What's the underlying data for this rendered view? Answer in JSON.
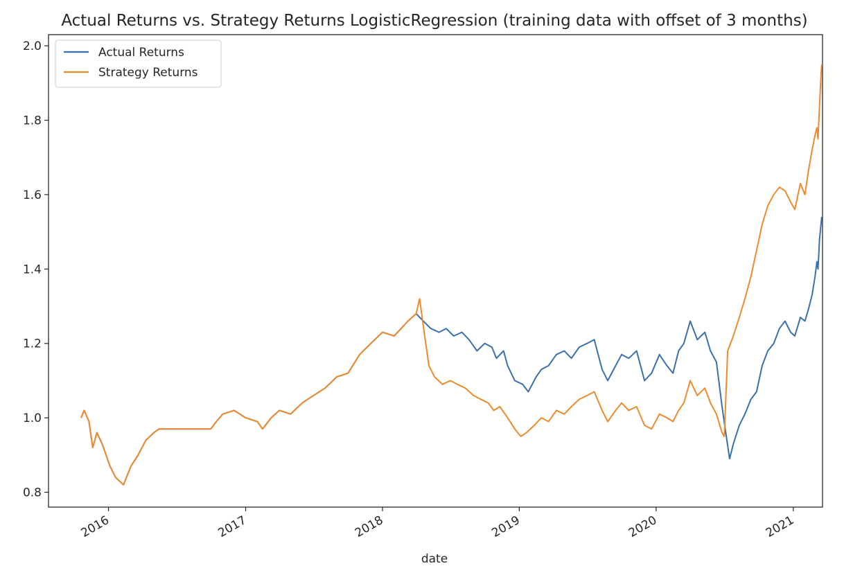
{
  "chart_data": {
    "type": "line",
    "title": "Actual Returns vs. Strategy Returns LogisticRegression (training data with offset of 3 months)",
    "xlabel": "date",
    "ylabel": "",
    "xlim": [
      "2015-07-25",
      "2021-03-20"
    ],
    "ylim": [
      0.76,
      2.03
    ],
    "x_ticks": [
      "2016",
      "2017",
      "2018",
      "2019",
      "2020",
      "2021"
    ],
    "y_ticks": [
      "0.8",
      "1.0",
      "1.2",
      "1.4",
      "1.6",
      "1.8",
      "2.0"
    ],
    "grid": false,
    "legend_position": "upper left",
    "colors": {
      "actual": "#3a6fad",
      "strategy": "#ef8a2c"
    },
    "series": [
      {
        "name": "Actual Returns",
        "color": "#3a6fad",
        "points": [
          [
            "2015-10-20",
            1.0
          ],
          [
            "2015-10-28",
            1.02
          ],
          [
            "2015-11-10",
            0.99
          ],
          [
            "2015-11-20",
            0.92
          ],
          [
            "2015-12-01",
            0.96
          ],
          [
            "2015-12-15",
            0.93
          ],
          [
            "2016-01-05",
            0.87
          ],
          [
            "2016-01-20",
            0.84
          ],
          [
            "2016-02-10",
            0.82
          ],
          [
            "2016-03-01",
            0.87
          ],
          [
            "2016-03-20",
            0.9
          ],
          [
            "2016-04-10",
            0.94
          ],
          [
            "2016-05-01",
            0.96
          ],
          [
            "2016-05-15",
            0.97
          ],
          [
            "2016-09-30",
            0.97
          ],
          [
            "2016-10-15",
            0.99
          ],
          [
            "2016-11-01",
            1.01
          ],
          [
            "2016-12-01",
            1.02
          ],
          [
            "2017-01-01",
            1.0
          ],
          [
            "2017-02-01",
            0.99
          ],
          [
            "2017-02-15",
            0.97
          ],
          [
            "2017-03-10",
            1.0
          ],
          [
            "2017-04-01",
            1.02
          ],
          [
            "2017-05-01",
            1.01
          ],
          [
            "2017-06-01",
            1.04
          ],
          [
            "2017-07-01",
            1.06
          ],
          [
            "2017-08-01",
            1.08
          ],
          [
            "2017-09-01",
            1.11
          ],
          [
            "2017-10-01",
            1.12
          ],
          [
            "2017-11-01",
            1.17
          ],
          [
            "2017-12-01",
            1.2
          ],
          [
            "2018-01-01",
            1.23
          ],
          [
            "2018-02-01",
            1.22
          ],
          [
            "2018-02-20",
            1.24
          ],
          [
            "2018-03-10",
            1.26
          ],
          [
            "2018-04-01",
            1.28
          ],
          [
            "2018-04-20",
            1.26
          ],
          [
            "2018-05-10",
            1.24
          ],
          [
            "2018-06-01",
            1.23
          ],
          [
            "2018-06-20",
            1.24
          ],
          [
            "2018-07-10",
            1.22
          ],
          [
            "2018-08-01",
            1.23
          ],
          [
            "2018-08-20",
            1.21
          ],
          [
            "2018-09-10",
            1.18
          ],
          [
            "2018-10-01",
            1.2
          ],
          [
            "2018-10-20",
            1.19
          ],
          [
            "2018-11-01",
            1.16
          ],
          [
            "2018-11-20",
            1.18
          ],
          [
            "2018-12-01",
            1.14
          ],
          [
            "2018-12-20",
            1.1
          ],
          [
            "2019-01-10",
            1.09
          ],
          [
            "2019-01-25",
            1.07
          ],
          [
            "2019-02-15",
            1.11
          ],
          [
            "2019-03-01",
            1.13
          ],
          [
            "2019-03-20",
            1.14
          ],
          [
            "2019-04-10",
            1.17
          ],
          [
            "2019-05-01",
            1.18
          ],
          [
            "2019-05-20",
            1.16
          ],
          [
            "2019-06-10",
            1.19
          ],
          [
            "2019-07-01",
            1.2
          ],
          [
            "2019-07-20",
            1.21
          ],
          [
            "2019-08-10",
            1.13
          ],
          [
            "2019-08-25",
            1.1
          ],
          [
            "2019-09-15",
            1.14
          ],
          [
            "2019-10-01",
            1.17
          ],
          [
            "2019-10-20",
            1.16
          ],
          [
            "2019-11-10",
            1.18
          ],
          [
            "2019-12-01",
            1.1
          ],
          [
            "2019-12-20",
            1.12
          ],
          [
            "2020-01-10",
            1.17
          ],
          [
            "2020-01-30",
            1.14
          ],
          [
            "2020-02-15",
            1.12
          ],
          [
            "2020-03-01",
            1.18
          ],
          [
            "2020-03-15",
            1.2
          ],
          [
            "2020-04-01",
            1.26
          ],
          [
            "2020-04-20",
            1.21
          ],
          [
            "2020-05-10",
            1.23
          ],
          [
            "2020-05-25",
            1.18
          ],
          [
            "2020-06-10",
            1.15
          ],
          [
            "2020-06-25",
            1.03
          ],
          [
            "2020-07-05",
            0.96
          ],
          [
            "2020-07-15",
            0.89
          ],
          [
            "2020-07-25",
            0.93
          ],
          [
            "2020-08-10",
            0.98
          ],
          [
            "2020-08-25",
            1.01
          ],
          [
            "2020-09-10",
            1.05
          ],
          [
            "2020-09-25",
            1.07
          ],
          [
            "2020-10-10",
            1.14
          ],
          [
            "2020-10-25",
            1.18
          ],
          [
            "2020-11-10",
            1.2
          ],
          [
            "2020-11-25",
            1.24
          ],
          [
            "2020-12-10",
            1.26
          ],
          [
            "2020-12-25",
            1.23
          ],
          [
            "2021-01-05",
            1.22
          ],
          [
            "2021-01-20",
            1.27
          ],
          [
            "2021-02-01",
            1.26
          ],
          [
            "2021-02-10",
            1.29
          ],
          [
            "2021-02-20",
            1.33
          ],
          [
            "2021-02-28",
            1.38
          ],
          [
            "2021-03-05",
            1.42
          ],
          [
            "2021-03-08",
            1.4
          ],
          [
            "2021-03-12",
            1.48
          ],
          [
            "2021-03-16",
            1.52
          ],
          [
            "2021-03-18",
            1.54
          ]
        ]
      },
      {
        "name": "Strategy Returns",
        "color": "#ef8a2c",
        "points": [
          [
            "2015-10-20",
            1.0
          ],
          [
            "2015-10-28",
            1.02
          ],
          [
            "2015-11-10",
            0.99
          ],
          [
            "2015-11-20",
            0.92
          ],
          [
            "2015-12-01",
            0.96
          ],
          [
            "2015-12-15",
            0.93
          ],
          [
            "2016-01-05",
            0.87
          ],
          [
            "2016-01-20",
            0.84
          ],
          [
            "2016-02-10",
            0.82
          ],
          [
            "2016-03-01",
            0.87
          ],
          [
            "2016-03-20",
            0.9
          ],
          [
            "2016-04-10",
            0.94
          ],
          [
            "2016-05-01",
            0.96
          ],
          [
            "2016-05-15",
            0.97
          ],
          [
            "2016-09-30",
            0.97
          ],
          [
            "2016-10-15",
            0.99
          ],
          [
            "2016-11-01",
            1.01
          ],
          [
            "2016-12-01",
            1.02
          ],
          [
            "2017-01-01",
            1.0
          ],
          [
            "2017-02-01",
            0.99
          ],
          [
            "2017-02-15",
            0.97
          ],
          [
            "2017-03-10",
            1.0
          ],
          [
            "2017-04-01",
            1.02
          ],
          [
            "2017-05-01",
            1.01
          ],
          [
            "2017-06-01",
            1.04
          ],
          [
            "2017-07-01",
            1.06
          ],
          [
            "2017-08-01",
            1.08
          ],
          [
            "2017-09-01",
            1.11
          ],
          [
            "2017-10-01",
            1.12
          ],
          [
            "2017-11-01",
            1.17
          ],
          [
            "2017-12-01",
            1.2
          ],
          [
            "2018-01-01",
            1.23
          ],
          [
            "2018-02-01",
            1.22
          ],
          [
            "2018-02-20",
            1.24
          ],
          [
            "2018-03-10",
            1.26
          ],
          [
            "2018-04-01",
            1.28
          ],
          [
            "2018-04-10",
            1.32
          ],
          [
            "2018-04-25",
            1.21
          ],
          [
            "2018-05-05",
            1.14
          ],
          [
            "2018-05-20",
            1.11
          ],
          [
            "2018-06-10",
            1.09
          ],
          [
            "2018-07-01",
            1.1
          ],
          [
            "2018-07-20",
            1.09
          ],
          [
            "2018-08-10",
            1.08
          ],
          [
            "2018-09-01",
            1.06
          ],
          [
            "2018-09-20",
            1.05
          ],
          [
            "2018-10-10",
            1.04
          ],
          [
            "2018-10-25",
            1.02
          ],
          [
            "2018-11-10",
            1.03
          ],
          [
            "2018-12-01",
            1.0
          ],
          [
            "2018-12-20",
            0.97
          ],
          [
            "2019-01-05",
            0.95
          ],
          [
            "2019-01-20",
            0.96
          ],
          [
            "2019-02-10",
            0.98
          ],
          [
            "2019-03-01",
            1.0
          ],
          [
            "2019-03-20",
            0.99
          ],
          [
            "2019-04-10",
            1.02
          ],
          [
            "2019-05-01",
            1.01
          ],
          [
            "2019-05-20",
            1.03
          ],
          [
            "2019-06-10",
            1.05
          ],
          [
            "2019-07-01",
            1.06
          ],
          [
            "2019-07-20",
            1.07
          ],
          [
            "2019-08-10",
            1.02
          ],
          [
            "2019-08-25",
            0.99
          ],
          [
            "2019-09-15",
            1.02
          ],
          [
            "2019-10-01",
            1.04
          ],
          [
            "2019-10-20",
            1.02
          ],
          [
            "2019-11-10",
            1.03
          ],
          [
            "2019-12-01",
            0.98
          ],
          [
            "2019-12-20",
            0.97
          ],
          [
            "2020-01-10",
            1.01
          ],
          [
            "2020-01-30",
            1.0
          ],
          [
            "2020-02-15",
            0.99
          ],
          [
            "2020-03-01",
            1.02
          ],
          [
            "2020-03-15",
            1.04
          ],
          [
            "2020-04-01",
            1.1
          ],
          [
            "2020-04-20",
            1.06
          ],
          [
            "2020-05-10",
            1.08
          ],
          [
            "2020-05-25",
            1.04
          ],
          [
            "2020-06-10",
            1.01
          ],
          [
            "2020-06-25",
            0.96
          ],
          [
            "2020-07-01",
            0.95
          ],
          [
            "2020-07-10",
            1.18
          ],
          [
            "2020-07-25",
            1.22
          ],
          [
            "2020-08-10",
            1.27
          ],
          [
            "2020-08-25",
            1.32
          ],
          [
            "2020-09-10",
            1.38
          ],
          [
            "2020-09-25",
            1.45
          ],
          [
            "2020-10-10",
            1.52
          ],
          [
            "2020-10-25",
            1.57
          ],
          [
            "2020-11-10",
            1.6
          ],
          [
            "2020-11-25",
            1.62
          ],
          [
            "2020-12-10",
            1.61
          ],
          [
            "2020-12-25",
            1.58
          ],
          [
            "2021-01-05",
            1.56
          ],
          [
            "2021-01-20",
            1.63
          ],
          [
            "2021-02-01",
            1.6
          ],
          [
            "2021-02-10",
            1.66
          ],
          [
            "2021-02-20",
            1.72
          ],
          [
            "2021-02-28",
            1.76
          ],
          [
            "2021-03-05",
            1.78
          ],
          [
            "2021-03-08",
            1.75
          ],
          [
            "2021-03-12",
            1.84
          ],
          [
            "2021-03-16",
            1.92
          ],
          [
            "2021-03-18",
            1.95
          ]
        ]
      }
    ]
  }
}
